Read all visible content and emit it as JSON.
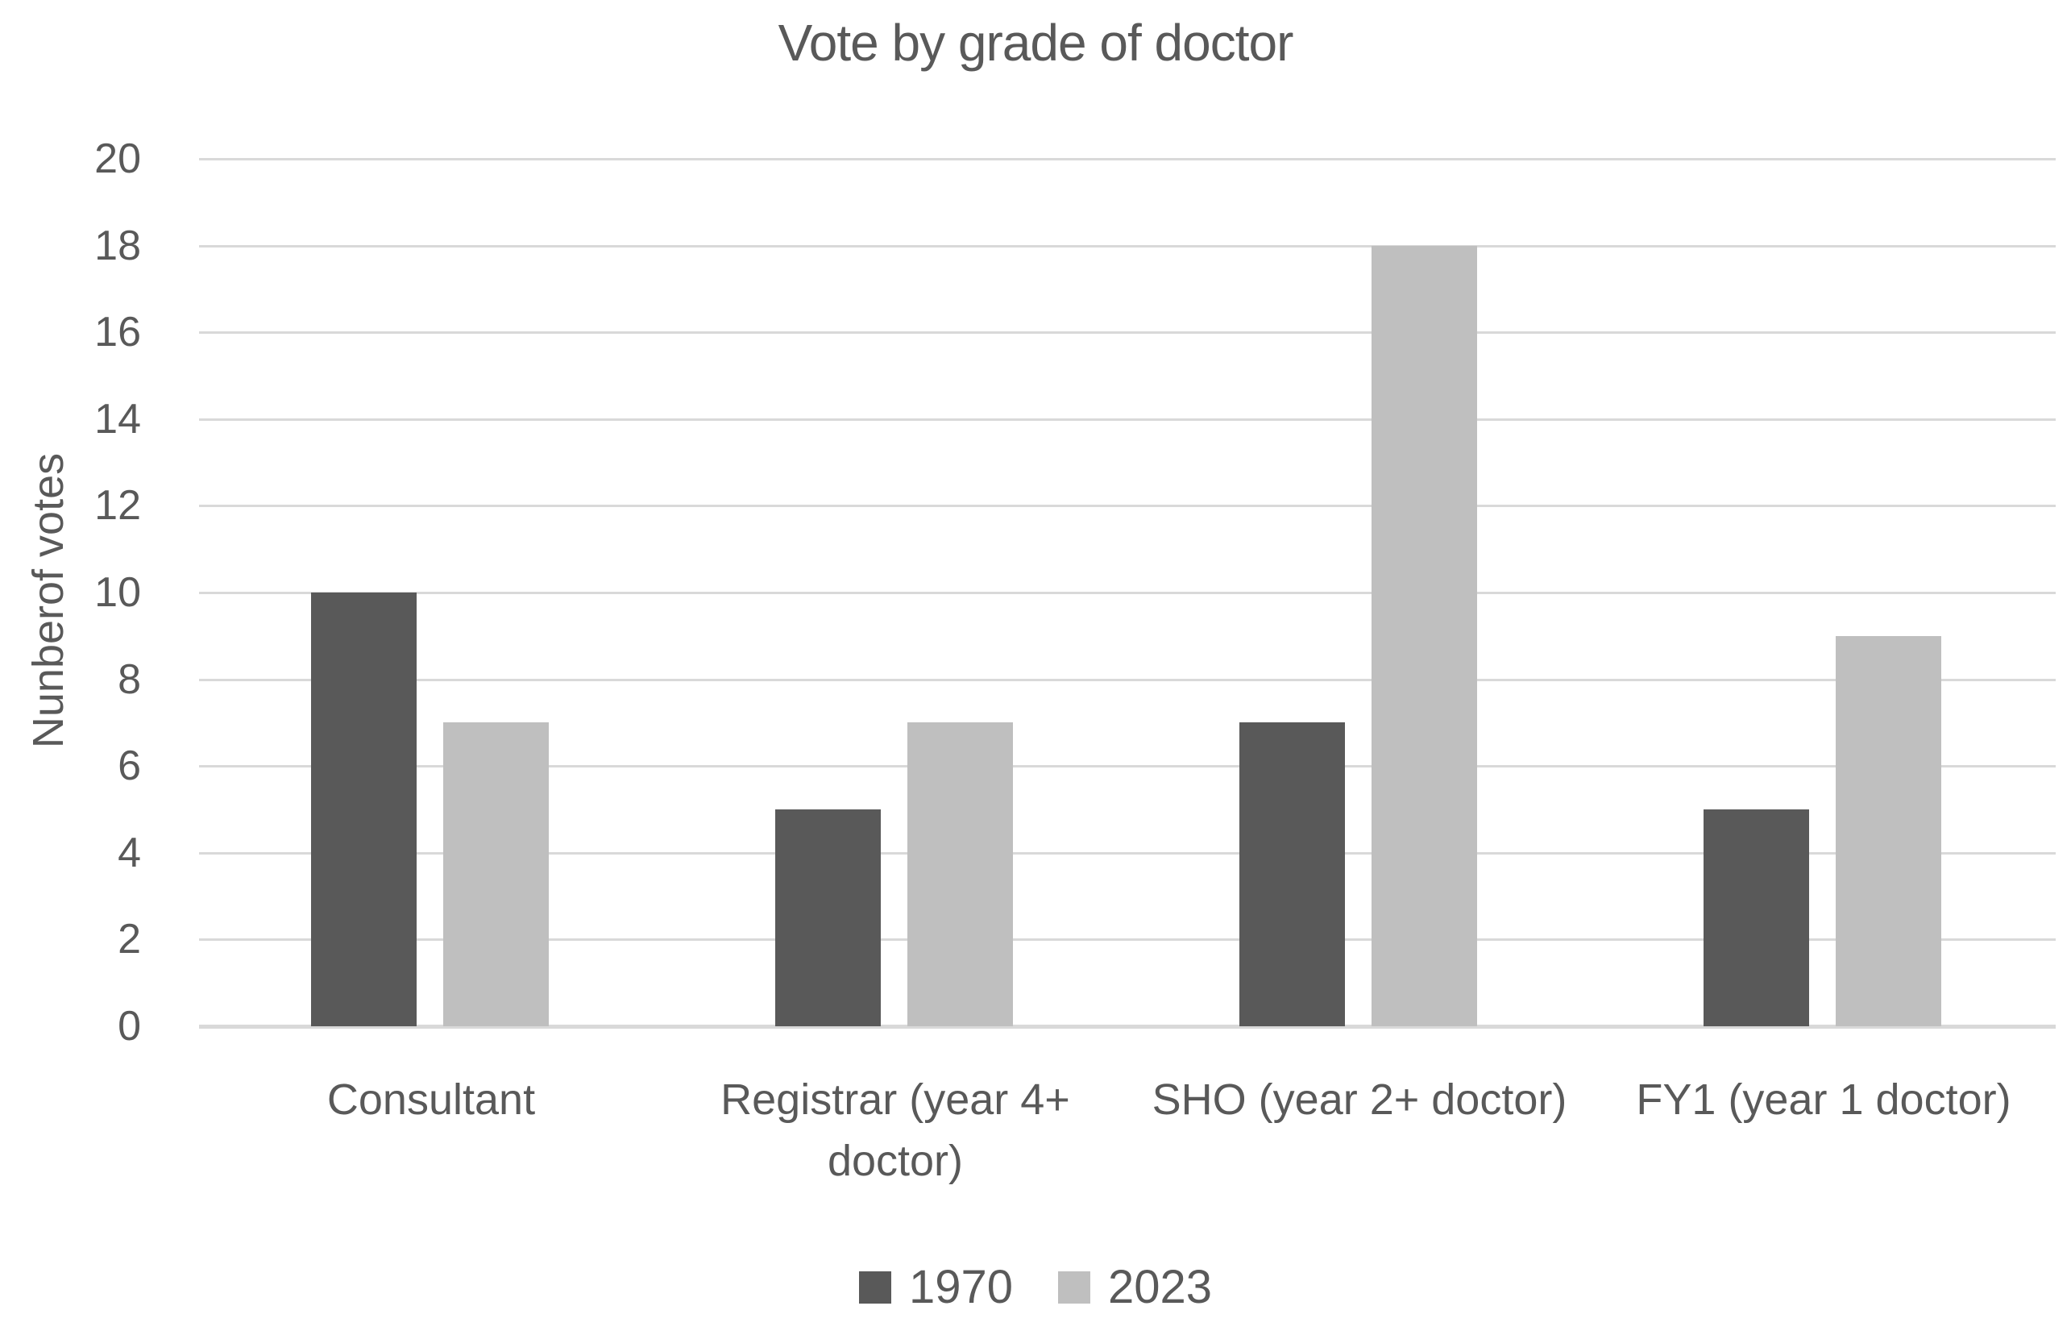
{
  "chart_data": {
    "type": "bar",
    "title": "Vote by grade of doctor",
    "xlabel": "",
    "ylabel": "Nunberof votes",
    "categories": [
      "Consultant",
      "Registrar (year 4+ doctor)",
      "SHO (year 2+ doctor)",
      "FY1 (year 1 doctor)"
    ],
    "series": [
      {
        "name": "1970",
        "color": "#595959",
        "values": [
          10,
          5,
          7,
          5
        ]
      },
      {
        "name": "2023",
        "color": "#bfbfbf",
        "values": [
          7,
          7,
          18,
          9
        ]
      }
    ],
    "ylim": [
      0,
      20
    ],
    "yticks": [
      0,
      2,
      4,
      6,
      8,
      10,
      12,
      14,
      16,
      18,
      20
    ],
    "grid": true,
    "legend_position": "bottom",
    "colors": {
      "text": "#595959",
      "gridline": "#d9d9d9",
      "axis_line": "#d9d9d9",
      "background": "#ffffff"
    }
  }
}
